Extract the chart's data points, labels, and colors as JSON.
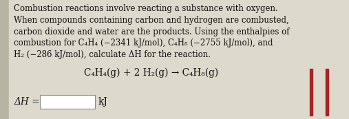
{
  "bg_color": "#ddd9cc",
  "left_strip_color": "#b8b4a4",
  "paragraph_text": "Combustion reactions involve reacting a substance with oxygen.\nWhen compounds containing carbon and hydrogen are combusted,\ncarbon dioxide and water are the products. Using the enthalpies of\ncombustion for C₄H₄ (−2341 kJ/mol), C₄H₈ (−2755 kJ/mol), and\nH₂ (−286 kJ/mol), calculate ΔH for the reaction.",
  "reaction_text": "C₄H₄(g) + 2 H₂(g) → C₄H₈(g)",
  "delta_h_label": "ΔH =",
  "kj_label": "kJ",
  "input_box_color": "#ffffff",
  "input_box_border": "#888888",
  "text_color": "#111111",
  "bar_color": "#aa2222",
  "font_size_para": 8.5,
  "font_size_reaction": 9.8,
  "font_size_dh": 9.8
}
